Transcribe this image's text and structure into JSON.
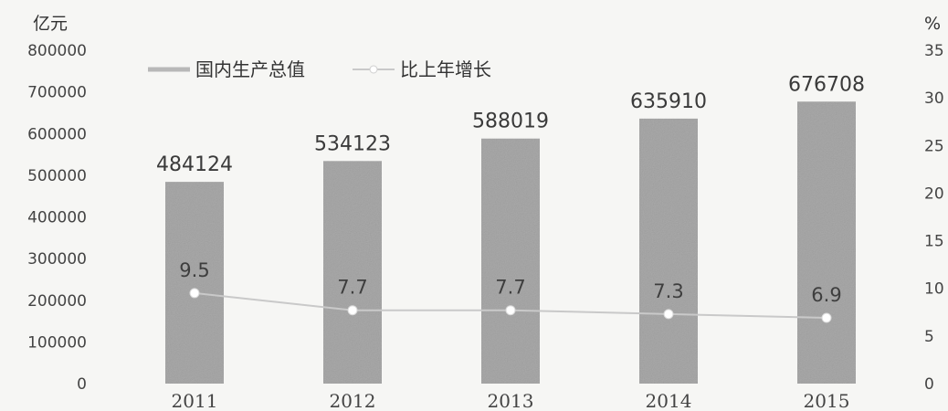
{
  "colors": {
    "background": "#f6f6f4",
    "bar": "#a9a9a9",
    "line": "#c9c9c9",
    "marker": "#ffffff",
    "text": "#444444"
  },
  "chart_data": {
    "type": "bar",
    "title": "",
    "categories": [
      "2011",
      "2012",
      "2013",
      "2014",
      "2015"
    ],
    "left_axis": {
      "unit": "亿元",
      "ticks": [
        "800000",
        "700000",
        "600000",
        "500000",
        "400000",
        "300000",
        "200000",
        "100000",
        "0"
      ],
      "ylim": [
        0,
        800000
      ]
    },
    "right_axis": {
      "unit": "%",
      "ticks": [
        "35",
        "30",
        "25",
        "20",
        "15",
        "10",
        "5",
        "0"
      ],
      "ylim": [
        0,
        35
      ]
    },
    "series": [
      {
        "name": "国内生产总值",
        "type": "bar",
        "axis": "left",
        "values": [
          484124,
          534123,
          588019,
          635910,
          676708
        ]
      },
      {
        "name": "比上年增长",
        "type": "line",
        "axis": "right",
        "values": [
          9.5,
          7.7,
          7.7,
          7.3,
          6.9
        ]
      }
    ],
    "legend_position": "top-left",
    "grid": false
  }
}
